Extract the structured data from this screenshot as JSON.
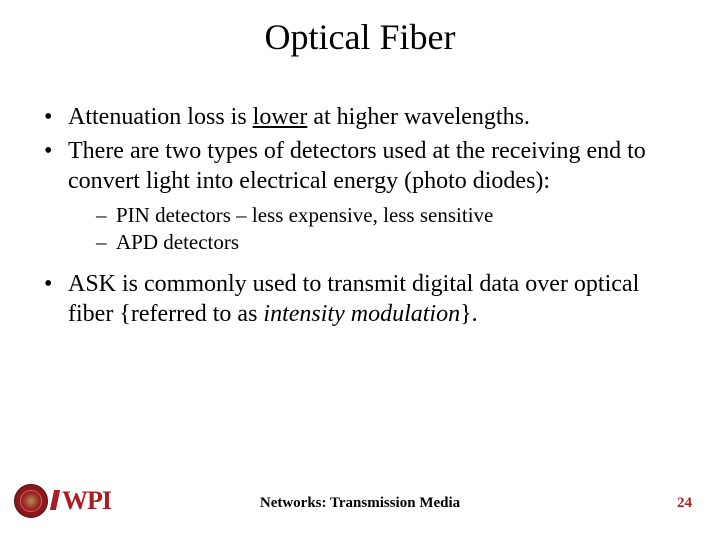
{
  "title": "Optical Fiber",
  "bullets": {
    "b1_pre": "Attenuation loss is ",
    "b1_u": "lower",
    "b1_post": " at higher wavelengths.",
    "b2": "There are two types of detectors used at the receiving end to convert light into electrical energy (photo diodes):",
    "b2_sub1": "PIN detectors – less expensive, less sensitive",
    "b2_sub2": "APD detectors",
    "b3_pre": "ASK is commonly used to transmit digital data over optical fiber {referred to as ",
    "b3_it": "intensity modulation",
    "b3_post": "}."
  },
  "footer": {
    "center": "Networks: Transmission Media",
    "page": "24",
    "logo_text": "WPI"
  },
  "colors": {
    "accent": "#a81e22",
    "text": "#000000",
    "bg": "#ffffff"
  }
}
